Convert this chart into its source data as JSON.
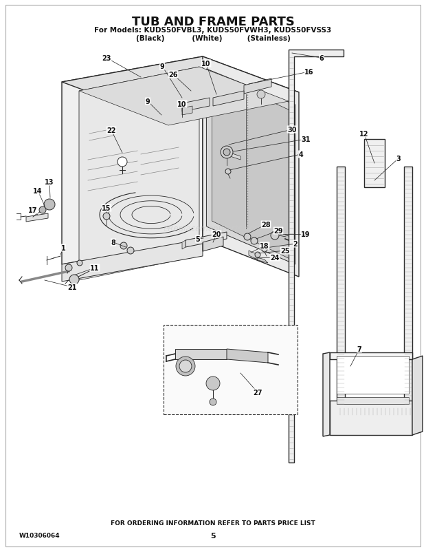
{
  "title": "TUB AND FRAME PARTS",
  "subtitle1": "For Models: KUDS50FVBL3, KUDS50FVWH3, KUDS50FVSS3",
  "subtitle2": "(Black)           (White)          (Stainless)",
  "footer_center": "FOR ORDERING INFORMATION REFER TO PARTS PRICE LIST",
  "footer_left": "W10306064",
  "footer_page": "5",
  "bg_color": "#ffffff",
  "lc": "#2a2a2a",
  "watermark": "eReplacementParts.com"
}
